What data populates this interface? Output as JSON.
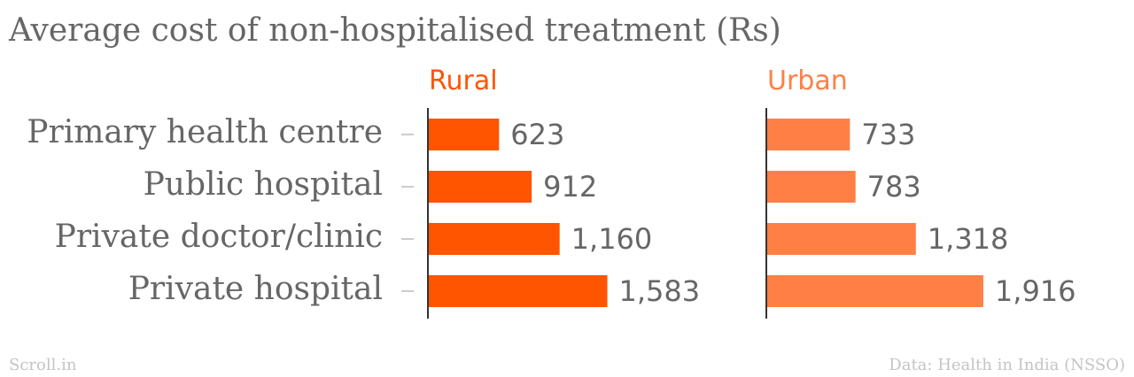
{
  "chart_data": {
    "type": "bar",
    "orientation": "horizontal",
    "title": "Average cost of non-hospitalised treatment (Rs)",
    "categories": [
      "Primary health centre",
      "Public hospital",
      "Private doctor/clinic",
      "Private hospital"
    ],
    "series": [
      {
        "name": "Rural",
        "values": [
          623,
          912,
          1160,
          1583
        ],
        "labels": [
          "623",
          "912",
          "1,160",
          "1,583"
        ],
        "color": "#ff5400"
      },
      {
        "name": "Urban",
        "values": [
          733,
          783,
          1318,
          1916
        ],
        "labels": [
          "733",
          "783",
          "1,318",
          "1,916"
        ],
        "color": "#ff7f45"
      }
    ],
    "xlim": [
      0,
      2000
    ],
    "grid": false,
    "legend": "panel titles above each panel"
  },
  "footer": {
    "source_left": "Scroll.in",
    "source_right": "Data: Health in India (NSSO)"
  },
  "colors": {
    "text": "#666666",
    "footer": "#c4c4c4",
    "axis": "#333333",
    "tick": "#cccccc"
  }
}
